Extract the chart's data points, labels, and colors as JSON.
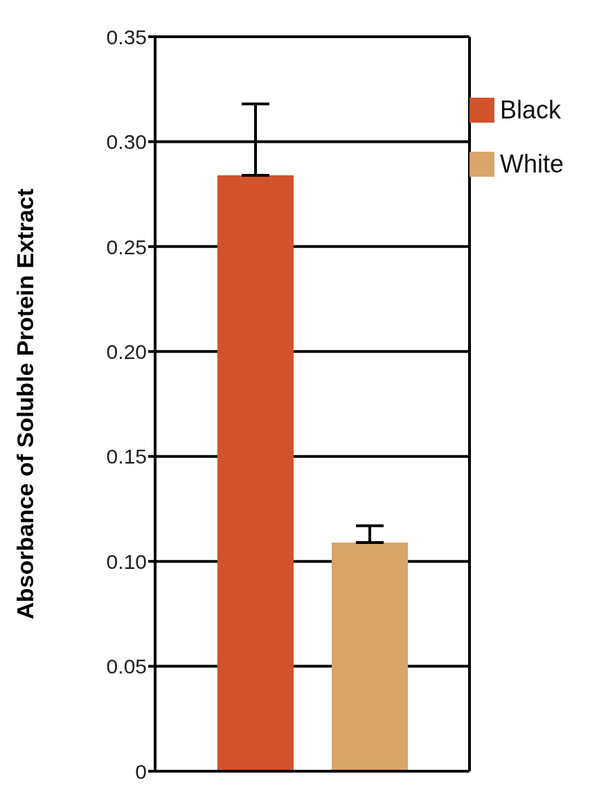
{
  "chart_data": {
    "type": "bar",
    "ylabel": "Absorbance of Soluble Protein Extract",
    "categories": [
      null
    ],
    "series": [
      {
        "name": "Black",
        "color": "#d2522b",
        "values": [
          0.284
        ],
        "errors": [
          [
            0.284,
            0.318
          ]
        ]
      },
      {
        "name": "White",
        "color": "#d8a468",
        "values": [
          0.109
        ],
        "errors": [
          [
            0.109,
            0.117
          ]
        ]
      }
    ],
    "ylim": [
      0,
      0.35
    ],
    "yticks": [
      {
        "value": 0,
        "label": "0"
      },
      {
        "value": 0.05,
        "label": "0.05"
      },
      {
        "value": 0.1,
        "label": "0.10"
      },
      {
        "value": 0.15,
        "label": "0.15"
      },
      {
        "value": 0.2,
        "label": "0.20"
      },
      {
        "value": 0.25,
        "label": "0.25"
      },
      {
        "value": 0.3,
        "label": "0.30"
      },
      {
        "value": 0.35,
        "label": "0.35"
      }
    ],
    "grid": "y",
    "legend": "right"
  }
}
